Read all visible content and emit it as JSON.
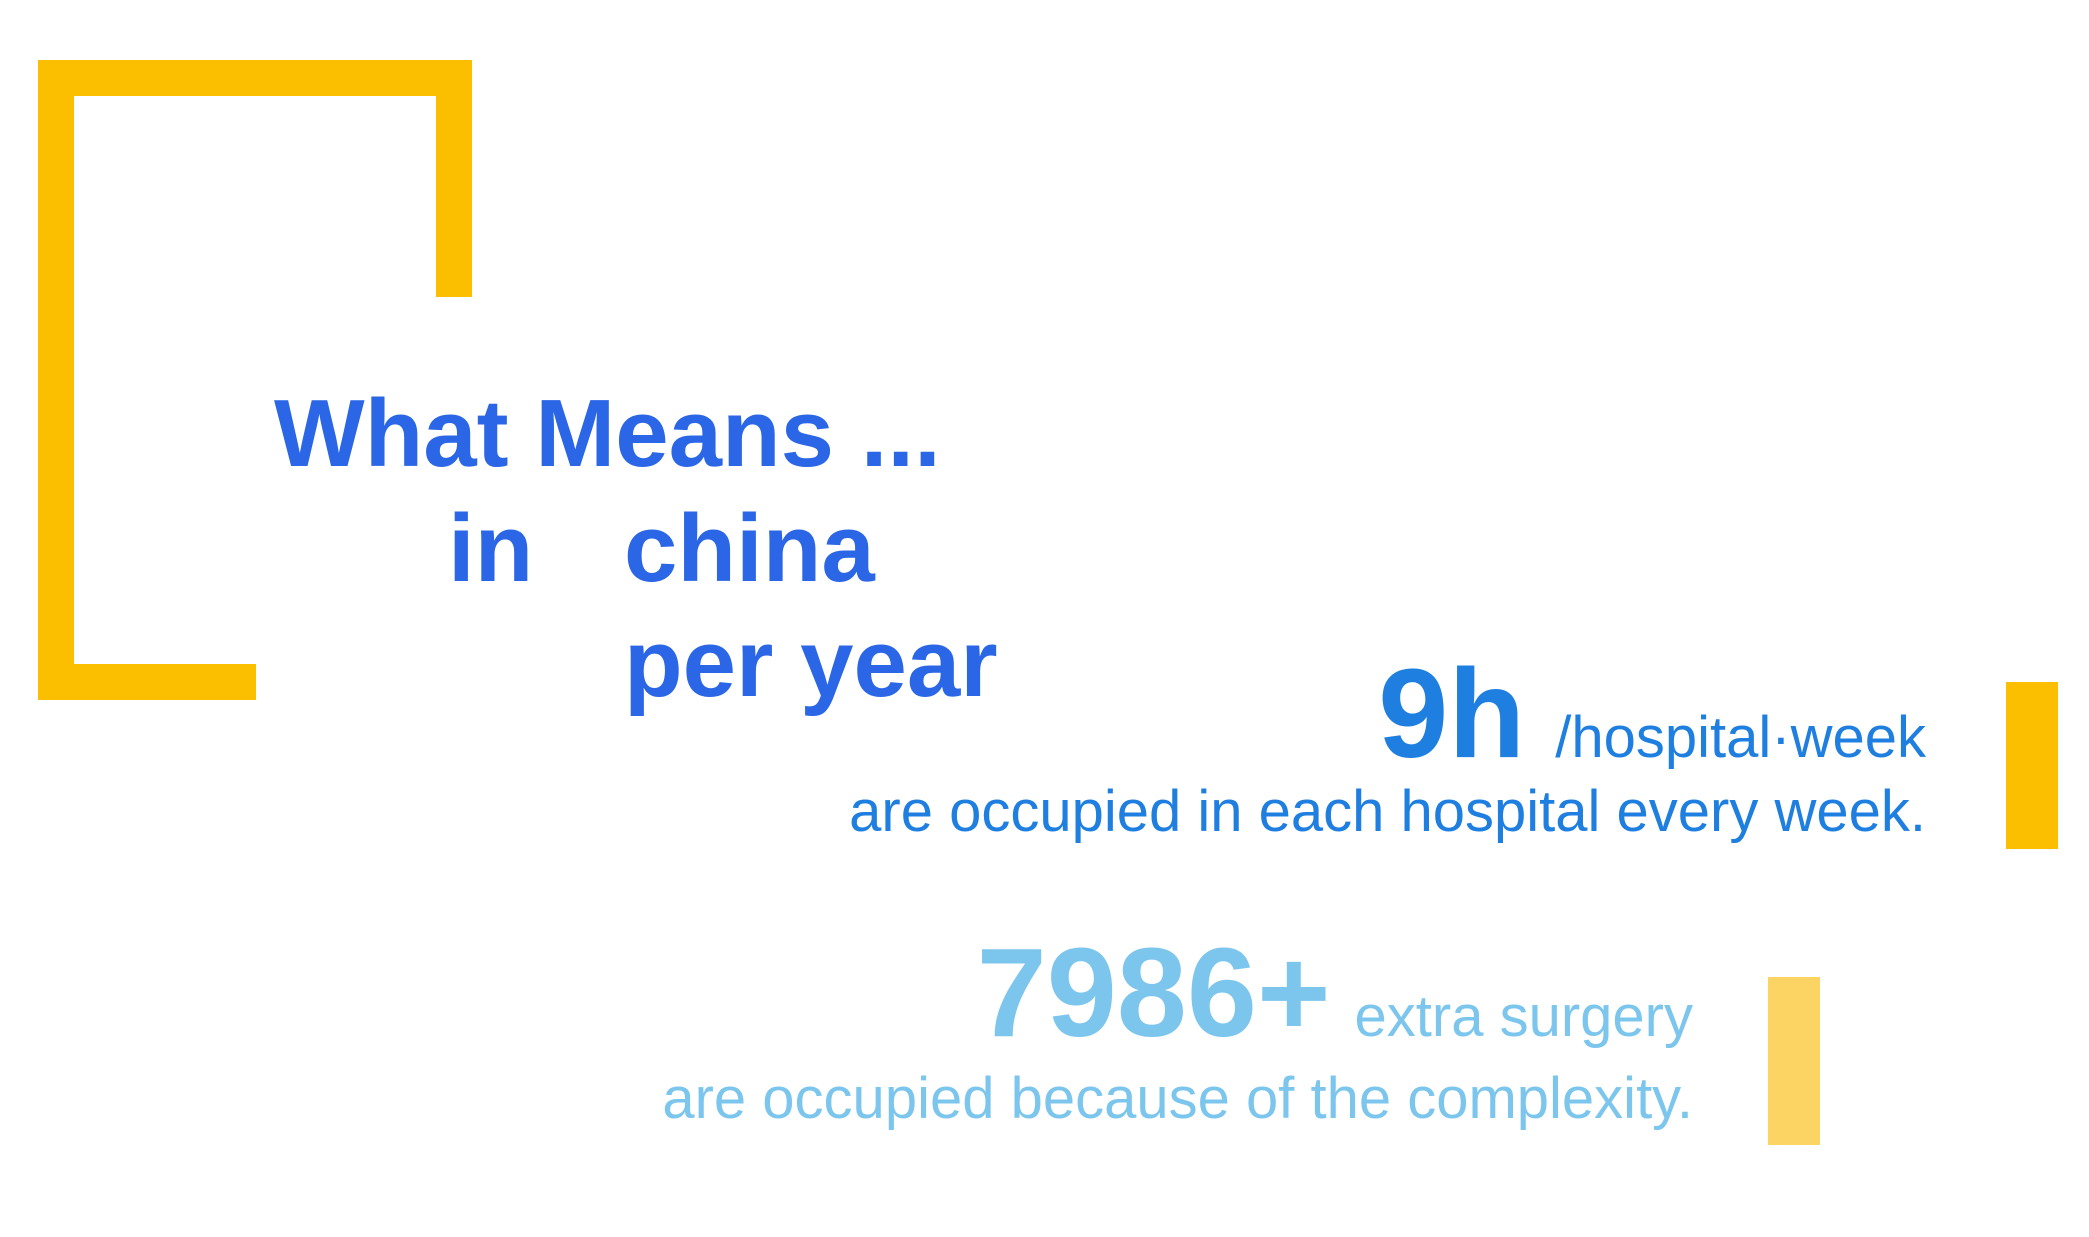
{
  "title": {
    "line1": "What Means ...",
    "line2_a": "in",
    "line2_b": "china",
    "line3": "per year"
  },
  "stat_primary": {
    "value": "9h",
    "unit": "/hospital·week",
    "description": "are occupied in each hospital every week."
  },
  "stat_secondary": {
    "value": "7986+",
    "unit": "extra surgery",
    "description": "are occupied because of the complexity."
  },
  "colors": {
    "title": "#2a66e6",
    "primary_stat": "#1f7fe0",
    "secondary_stat": "#7cc6ee",
    "accent_yellow": "#fbbf00",
    "accent_yellow_light": "#fbd463"
  }
}
